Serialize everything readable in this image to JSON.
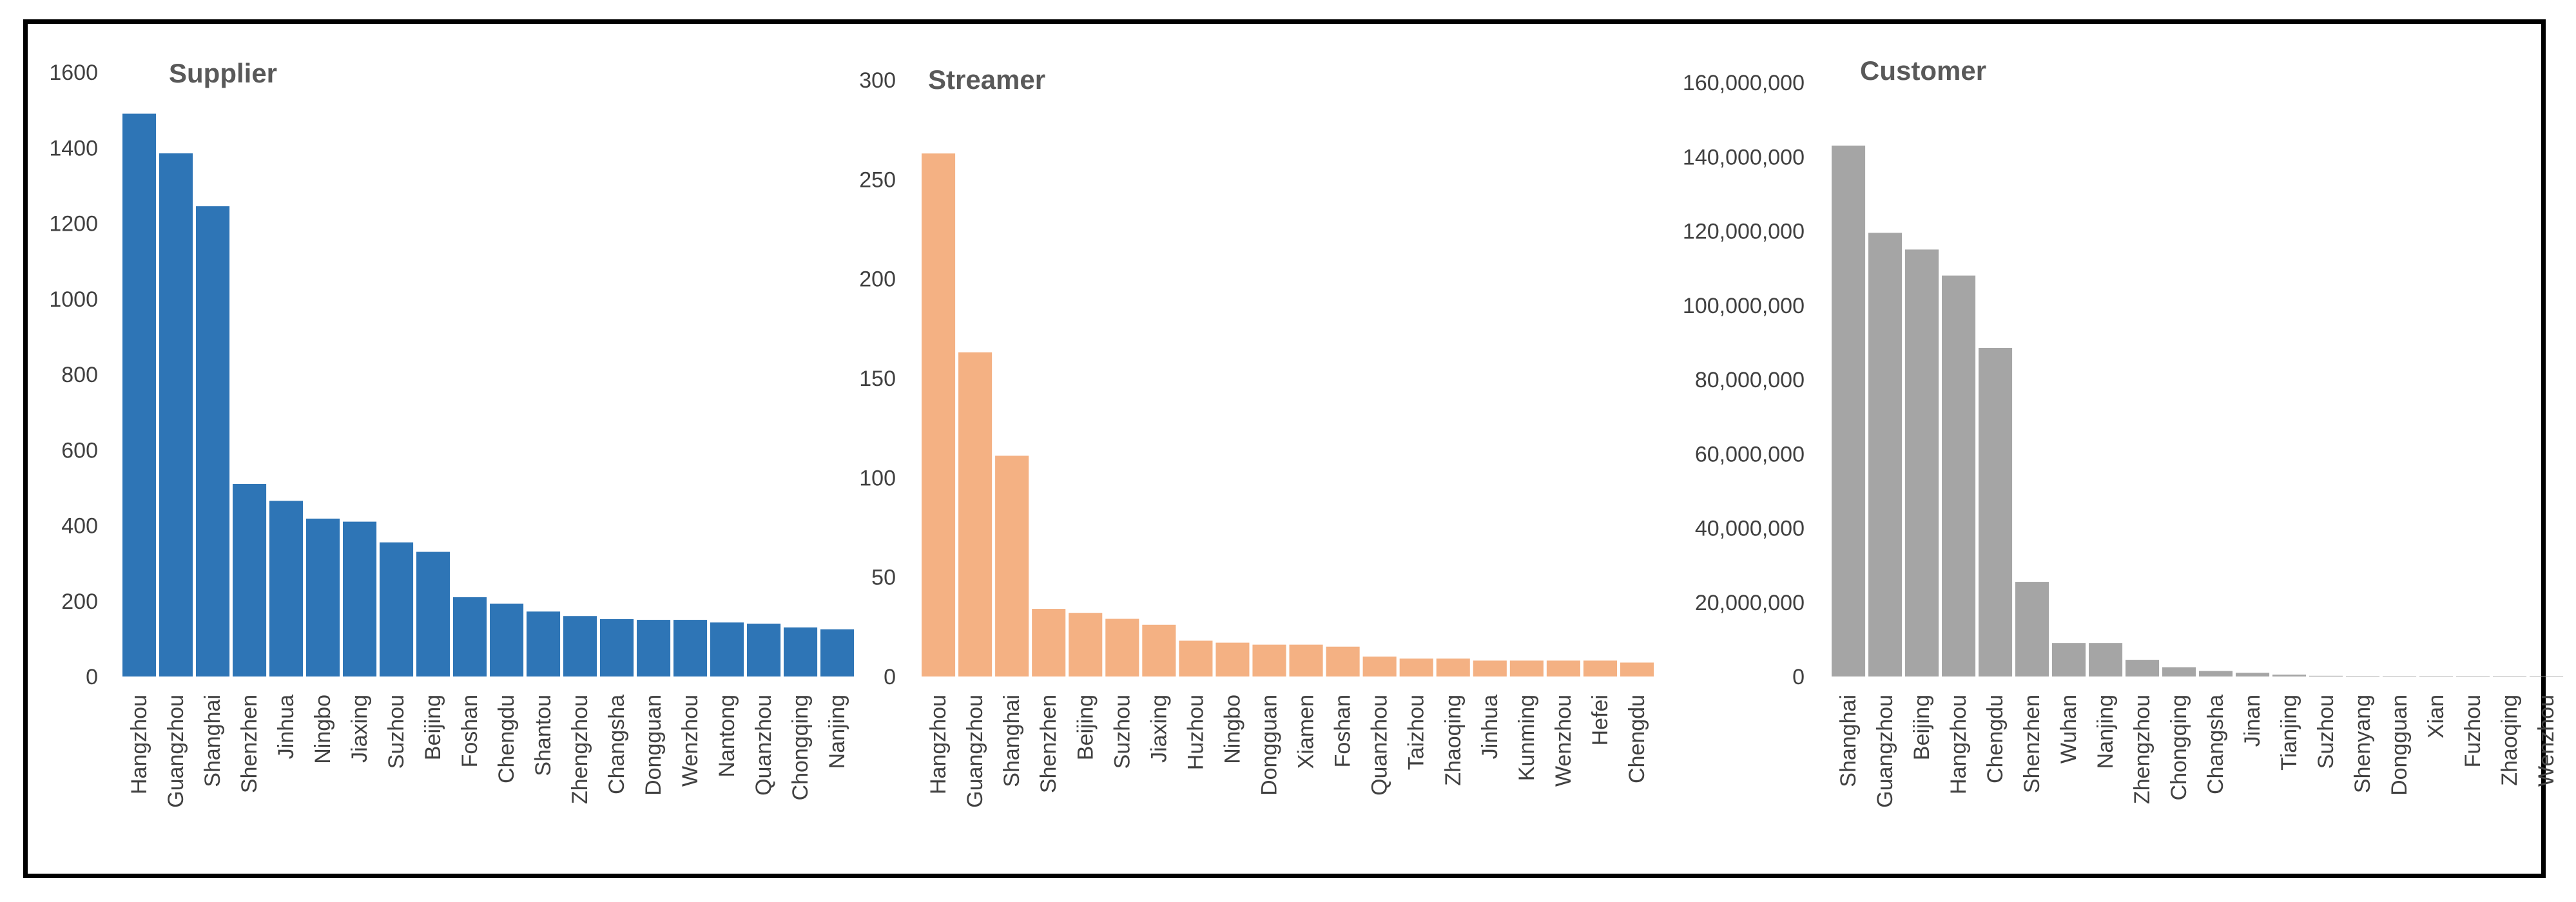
{
  "chart_data": [
    {
      "type": "bar",
      "title": "Supplier",
      "color": "#2E75B6",
      "ylim": [
        0,
        1600
      ],
      "yticks": [
        0,
        200,
        400,
        600,
        800,
        1000,
        1200,
        1400,
        1600
      ],
      "ytick_labels": [
        "0",
        "200",
        "400",
        "600",
        "800",
        "1000",
        "1200",
        "1400",
        "1600"
      ],
      "categories": [
        "Hangzhou",
        "Guangzhou",
        "Shanghai",
        "Shenzhen",
        "Jinhua",
        "Ningbo",
        "Jiaxing",
        "Suzhou",
        "Beijing",
        "Foshan",
        "Chengdu",
        "Shantou",
        "Zhengzhou",
        "Changsha",
        "Dongguan",
        "Wenzhou",
        "Nantong",
        "Quanzhou",
        "Chongqing",
        "Nanjing"
      ],
      "values": [
        1490,
        1385,
        1245,
        510,
        465,
        418,
        410,
        355,
        330,
        210,
        193,
        172,
        160,
        152,
        150,
        150,
        143,
        140,
        130,
        125
      ]
    },
    {
      "type": "bar",
      "title": "Streamer",
      "color": "#F4B183",
      "ylim": [
        0,
        300
      ],
      "yticks": [
        0,
        50,
        100,
        150,
        200,
        250,
        300
      ],
      "ytick_labels": [
        "0",
        "50",
        "100",
        "150",
        "200",
        "250",
        "300"
      ],
      "categories": [
        "Hangzhou",
        "Guangzhou",
        "Shanghai",
        "Shenzhen",
        "Beijing",
        "Suzhou",
        "Jiaxing",
        "Huzhou",
        "Ningbo",
        "Dongguan",
        "Xiamen",
        "Foshan",
        "Quanzhou",
        "Taizhou",
        "Zhaoqing",
        "Jinhua",
        "Kunming",
        "Wenzhou",
        "Hefei",
        "Chengdu"
      ],
      "values": [
        263,
        163,
        111,
        34,
        32,
        29,
        26,
        18,
        17,
        16,
        16,
        15,
        10,
        9,
        9,
        8,
        8,
        8,
        8,
        7
      ]
    },
    {
      "type": "bar",
      "title": "Customer",
      "color": "#A5A5A5",
      "ylim": [
        0,
        160000000
      ],
      "yticks": [
        0,
        20000000,
        40000000,
        60000000,
        80000000,
        100000000,
        120000000,
        140000000,
        160000000
      ],
      "ytick_labels": [
        "0",
        "20,000,000",
        "40,000,000",
        "60,000,000",
        "80,000,000",
        "100,000,000",
        "120,000,000",
        "140,000,000",
        "160,000,000"
      ],
      "categories": [
        "Shanghai",
        "Guangzhou",
        "Beijing",
        "Hangzhou",
        "Chengdu",
        "Shenzhen",
        "Wuhan",
        "Nanjing",
        "Zhengzhou",
        "Chongqing",
        "Changsha",
        "Jinan",
        "Tianjing",
        "Suzhou",
        "Shenyang",
        "Dongguan",
        "Xian",
        "Fuzhou",
        "Zhaoqing",
        "Wenzhou"
      ],
      "values": [
        143000000,
        119500000,
        115000000,
        108000000,
        88500000,
        25500000,
        9000000,
        9000000,
        4500000,
        2500000,
        1500000,
        1000000,
        500000,
        200000,
        150000,
        100000,
        80000,
        60000,
        50000,
        40000
      ]
    }
  ]
}
